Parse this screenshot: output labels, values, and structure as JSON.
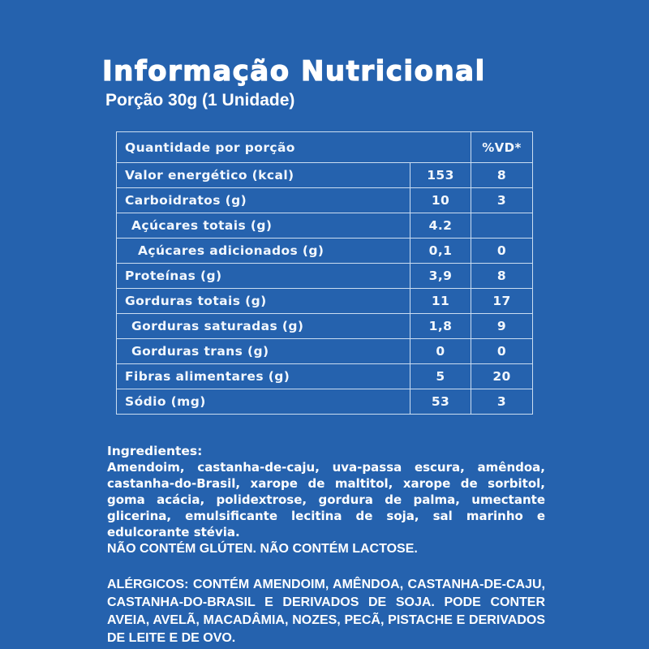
{
  "colors": {
    "background": "#2562AE",
    "table_border": "#CBDDF1",
    "text": "#FFFFFF"
  },
  "header": {
    "title": "Informação Nutricional",
    "serving": "Porção 30g (1 Unidade)"
  },
  "table": {
    "header": {
      "quantity_label": "Quantidade por porção",
      "dv_label": "%VD*"
    },
    "rows": [
      {
        "label": "Valor energético (kcal)",
        "amount": "153",
        "dv": "8"
      },
      {
        "label": "Carboidratos (g)",
        "amount": "10",
        "dv": "3"
      },
      {
        "label": "Açúcares totais (g)",
        "amount": "4.2",
        "dv": ""
      },
      {
        "label": "Açúcares adicionados (g)",
        "amount": "0,1",
        "dv": "0"
      },
      {
        "label": "Proteínas (g)",
        "amount": "3,9",
        "dv": "8"
      },
      {
        "label": "Gorduras totais (g)",
        "amount": "11",
        "dv": "17"
      },
      {
        "label": "Gorduras saturadas (g)",
        "amount": "1,8",
        "dv": "9"
      },
      {
        "label": "Gorduras trans (g)",
        "amount": "0",
        "dv": "0"
      },
      {
        "label": "Fibras alimentares (g)",
        "amount": "5",
        "dv": "20"
      },
      {
        "label": "Sódio (mg)",
        "amount": "53",
        "dv": "3"
      }
    ]
  },
  "ingredients": {
    "title": "Ingredientes:",
    "body": "Amendoim, castanha-de-caju, uva-passa escura, amêndoa, castanha-do-Brasil, xarope de maltitol, xarope de sorbitol, goma acácia, polidextrose, gordura de palma, umectante glicerina, emulsificante lecitina de soja, sal marinho e edulcorante stévia.",
    "claims": "NÃO CONTÉM GLÚTEN. NÃO CONTÉM LACTOSE."
  },
  "allergens": {
    "text": "ALÉRGICOS: CONTÉM AMENDOIM, AMÊNDOA, CASTANHA-DE-CAJU, CASTANHA-DO-BRASIL E DERIVADOS DE SOJA. PODE CONTER AVEIA, AVELÃ, MACADÂMIA, NOZES, PECÃ, PISTACHE E DERIVADOS DE LEITE E DE OVO."
  }
}
